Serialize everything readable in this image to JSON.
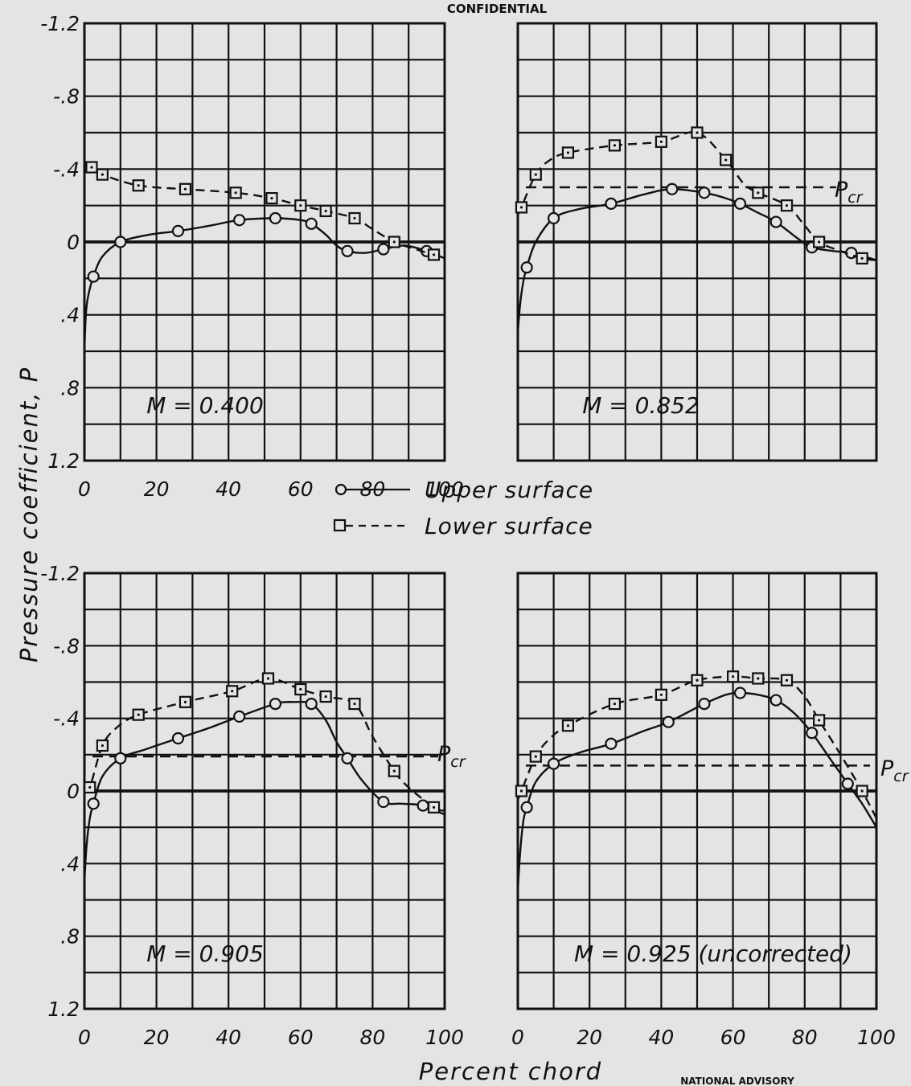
{
  "header": {
    "banner": "CONFIDENTIAL"
  },
  "footer": {
    "agency": "NATIONAL ADVISORY"
  },
  "legend": {
    "upper": "Upper surface",
    "lower": "Lower surface"
  },
  "labels": {
    "ylabel": "Pressure   coefficient, P",
    "xlabel": "Percent   chord"
  },
  "colors": {
    "background": "#e4e4e4",
    "ink": "#111111"
  },
  "chart_data": [
    {
      "type": "line",
      "panel": "top-left",
      "label": "M = 0.400",
      "xlabel": "Percent chord",
      "ylabel": "Pressure coefficient, P",
      "xlim": [
        0,
        100
      ],
      "ylim": [
        -1.2,
        1.2
      ],
      "y_inverted": true,
      "grid": true,
      "x_ticks": [
        "0",
        "20",
        "40",
        "60",
        "80",
        "100"
      ],
      "y_ticks": [
        "-1.2",
        "-.8",
        "-.4",
        "0",
        ".4",
        ".8",
        "1.2"
      ],
      "pcr": null,
      "series": [
        {
          "name": "Upper surface",
          "style": "solid",
          "marker": "circle",
          "points": [
            [
              2.5,
              0.19
            ],
            [
              10,
              0.0
            ],
            [
              26,
              -0.06
            ],
            [
              43,
              -0.12
            ],
            [
              53,
              -0.13
            ],
            [
              63,
              -0.1
            ],
            [
              73,
              0.05
            ],
            [
              83,
              0.04
            ],
            [
              95,
              0.05
            ]
          ],
          "curve": [
            [
              0,
              0.6
            ],
            [
              0.4,
              0.4
            ],
            [
              1,
              0.3
            ],
            [
              2.5,
              0.19
            ],
            [
              5,
              0.08
            ],
            [
              10,
              0.0
            ],
            [
              18,
              -0.04
            ],
            [
              26,
              -0.06
            ],
            [
              35,
              -0.09
            ],
            [
              43,
              -0.12
            ],
            [
              53,
              -0.13
            ],
            [
              60,
              -0.12
            ],
            [
              63,
              -0.1
            ],
            [
              67,
              -0.04
            ],
            [
              70,
              0.02
            ],
            [
              73,
              0.05
            ],
            [
              78,
              0.06
            ],
            [
              83,
              0.04
            ],
            [
              89,
              0.02
            ],
            [
              95,
              0.05
            ],
            [
              100,
              0.09
            ]
          ]
        },
        {
          "name": "Lower surface",
          "style": "dashed",
          "marker": "square",
          "points": [
            [
              2,
              -0.41
            ],
            [
              5,
              -0.37
            ],
            [
              15,
              -0.31
            ],
            [
              28,
              -0.29
            ],
            [
              42,
              -0.27
            ],
            [
              52,
              -0.24
            ],
            [
              60,
              -0.2
            ],
            [
              67,
              -0.17
            ],
            [
              75,
              -0.13
            ],
            [
              86,
              0.0
            ],
            [
              97,
              0.07
            ]
          ],
          "curve": [
            [
              0,
              -0.42
            ],
            [
              2,
              -0.41
            ],
            [
              5,
              -0.37
            ],
            [
              15,
              -0.31
            ],
            [
              28,
              -0.29
            ],
            [
              42,
              -0.27
            ],
            [
              52,
              -0.24
            ],
            [
              60,
              -0.2
            ],
            [
              67,
              -0.17
            ],
            [
              75,
              -0.13
            ],
            [
              80,
              -0.07
            ],
            [
              86,
              0.0
            ],
            [
              92,
              0.04
            ],
            [
              97,
              0.07
            ],
            [
              100,
              0.08
            ]
          ]
        }
      ]
    },
    {
      "type": "line",
      "panel": "top-right",
      "label": "M = 0.852",
      "xlim": [
        0,
        100
      ],
      "ylim": [
        -1.2,
        1.2
      ],
      "y_inverted": true,
      "grid": true,
      "x_ticks": [],
      "y_ticks": [],
      "pcr": -0.3,
      "series": [
        {
          "name": "Upper surface",
          "style": "solid",
          "marker": "circle",
          "points": [
            [
              2.5,
              0.14
            ],
            [
              10,
              -0.13
            ],
            [
              26,
              -0.21
            ],
            [
              43,
              -0.29
            ],
            [
              52,
              -0.27
            ],
            [
              62,
              -0.21
            ],
            [
              72,
              -0.11
            ],
            [
              82,
              0.03
            ],
            [
              93,
              0.06
            ]
          ],
          "curve": [
            [
              0,
              0.5
            ],
            [
              0.6,
              0.35
            ],
            [
              1.5,
              0.22
            ],
            [
              2.5,
              0.14
            ],
            [
              5,
              0.0
            ],
            [
              10,
              -0.13
            ],
            [
              17,
              -0.18
            ],
            [
              26,
              -0.21
            ],
            [
              35,
              -0.26
            ],
            [
              43,
              -0.29
            ],
            [
              52,
              -0.27
            ],
            [
              58,
              -0.24
            ],
            [
              62,
              -0.21
            ],
            [
              67,
              -0.16
            ],
            [
              72,
              -0.11
            ],
            [
              78,
              -0.02
            ],
            [
              82,
              0.03
            ],
            [
              88,
              0.05
            ],
            [
              93,
              0.06
            ],
            [
              100,
              0.1
            ]
          ]
        },
        {
          "name": "Lower surface",
          "style": "dashed",
          "marker": "square",
          "points": [
            [
              1,
              -0.19
            ],
            [
              5,
              -0.37
            ],
            [
              14,
              -0.49
            ],
            [
              27,
              -0.53
            ],
            [
              40,
              -0.55
            ],
            [
              50,
              -0.6
            ],
            [
              58,
              -0.45
            ],
            [
              67,
              -0.27
            ],
            [
              75,
              -0.2
            ],
            [
              84,
              0.0
            ],
            [
              96,
              0.09
            ]
          ],
          "curve": [
            [
              0,
              -0.15
            ],
            [
              1,
              -0.19
            ],
            [
              5,
              -0.37
            ],
            [
              9,
              -0.45
            ],
            [
              14,
              -0.49
            ],
            [
              27,
              -0.53
            ],
            [
              40,
              -0.55
            ],
            [
              50,
              -0.6
            ],
            [
              58,
              -0.45
            ],
            [
              63,
              -0.32
            ],
            [
              67,
              -0.27
            ],
            [
              75,
              -0.2
            ],
            [
              80,
              -0.09
            ],
            [
              84,
              0.0
            ],
            [
              90,
              0.05
            ],
            [
              96,
              0.09
            ],
            [
              100,
              0.1
            ]
          ]
        }
      ]
    },
    {
      "type": "line",
      "panel": "bottom-left",
      "label": "M = 0.905",
      "xlim": [
        0,
        100
      ],
      "ylim": [
        -1.2,
        1.2
      ],
      "y_inverted": true,
      "grid": true,
      "x_ticks": [
        "0",
        "20",
        "40",
        "60",
        "80",
        "100"
      ],
      "y_ticks": [
        "-1.2",
        "-.8",
        "-.4",
        "0",
        ".4",
        ".8",
        "1.2"
      ],
      "pcr": -0.19,
      "series": [
        {
          "name": "Upper surface",
          "style": "solid",
          "marker": "circle",
          "points": [
            [
              2.5,
              0.07
            ],
            [
              10,
              -0.18
            ],
            [
              26,
              -0.29
            ],
            [
              43,
              -0.41
            ],
            [
              53,
              -0.48
            ],
            [
              63,
              -0.48
            ],
            [
              73,
              -0.18
            ],
            [
              83,
              0.06
            ],
            [
              94,
              0.08
            ]
          ],
          "curve": [
            [
              0,
              0.5
            ],
            [
              0.6,
              0.3
            ],
            [
              1.5,
              0.15
            ],
            [
              2.5,
              0.07
            ],
            [
              5,
              -0.08
            ],
            [
              10,
              -0.18
            ],
            [
              17,
              -0.23
            ],
            [
              26,
              -0.29
            ],
            [
              35,
              -0.35
            ],
            [
              43,
              -0.41
            ],
            [
              53,
              -0.48
            ],
            [
              58,
              -0.49
            ],
            [
              63,
              -0.48
            ],
            [
              67,
              -0.39
            ],
            [
              70,
              -0.27
            ],
            [
              73,
              -0.18
            ],
            [
              77,
              -0.06
            ],
            [
              83,
              0.06
            ],
            [
              88,
              0.07
            ],
            [
              94,
              0.08
            ],
            [
              100,
              0.13
            ]
          ]
        },
        {
          "name": "Lower surface",
          "style": "dashed",
          "marker": "square",
          "points": [
            [
              1.5,
              -0.02
            ],
            [
              5,
              -0.25
            ],
            [
              15,
              -0.42
            ],
            [
              28,
              -0.49
            ],
            [
              41,
              -0.55
            ],
            [
              51,
              -0.62
            ],
            [
              60,
              -0.56
            ],
            [
              67,
              -0.52
            ],
            [
              75,
              -0.48
            ],
            [
              86,
              -0.11
            ],
            [
              97,
              0.09
            ]
          ],
          "curve": [
            [
              0,
              0.0
            ],
            [
              1.5,
              -0.02
            ],
            [
              5,
              -0.25
            ],
            [
              9,
              -0.35
            ],
            [
              15,
              -0.42
            ],
            [
              28,
              -0.49
            ],
            [
              41,
              -0.55
            ],
            [
              51,
              -0.62
            ],
            [
              60,
              -0.56
            ],
            [
              67,
              -0.52
            ],
            [
              75,
              -0.48
            ],
            [
              80,
              -0.3
            ],
            [
              86,
              -0.11
            ],
            [
              90,
              -0.02
            ],
            [
              97,
              0.09
            ],
            [
              100,
              0.11
            ]
          ]
        }
      ]
    },
    {
      "type": "line",
      "panel": "bottom-right",
      "label": "M = 0.925 (uncorrected)",
      "xlim": [
        0,
        100
      ],
      "ylim": [
        -1.2,
        1.2
      ],
      "y_inverted": true,
      "grid": true,
      "x_ticks": [
        "0",
        "20",
        "40",
        "60",
        "80",
        "100"
      ],
      "y_ticks": [],
      "pcr": -0.14,
      "series": [
        {
          "name": "Upper surface",
          "style": "solid",
          "marker": "circle",
          "points": [
            [
              2.5,
              0.09
            ],
            [
              10,
              -0.15
            ],
            [
              26,
              -0.26
            ],
            [
              42,
              -0.38
            ],
            [
              52,
              -0.48
            ],
            [
              62,
              -0.54
            ],
            [
              72,
              -0.5
            ],
            [
              82,
              -0.32
            ],
            [
              92,
              -0.04
            ]
          ],
          "curve": [
            [
              0,
              0.55
            ],
            [
              0.6,
              0.35
            ],
            [
              1.5,
              0.17
            ],
            [
              2.5,
              0.09
            ],
            [
              5,
              -0.05
            ],
            [
              10,
              -0.15
            ],
            [
              17,
              -0.21
            ],
            [
              26,
              -0.26
            ],
            [
              35,
              -0.33
            ],
            [
              42,
              -0.38
            ],
            [
              52,
              -0.48
            ],
            [
              58,
              -0.53
            ],
            [
              62,
              -0.54
            ],
            [
              67,
              -0.53
            ],
            [
              72,
              -0.5
            ],
            [
              77,
              -0.43
            ],
            [
              82,
              -0.32
            ],
            [
              87,
              -0.18
            ],
            [
              92,
              -0.04
            ],
            [
              96,
              0.07
            ],
            [
              100,
              0.2
            ]
          ]
        },
        {
          "name": "Lower surface",
          "style": "dashed",
          "marker": "square",
          "points": [
            [
              1,
              0.0
            ],
            [
              5,
              -0.19
            ],
            [
              14,
              -0.36
            ],
            [
              27,
              -0.48
            ],
            [
              40,
              -0.53
            ],
            [
              50,
              -0.61
            ],
            [
              60,
              -0.63
            ],
            [
              67,
              -0.62
            ],
            [
              75,
              -0.61
            ],
            [
              84,
              -0.39
            ],
            [
              96,
              0.0
            ]
          ],
          "curve": [
            [
              0,
              0.05
            ],
            [
              1,
              0.0
            ],
            [
              5,
              -0.19
            ],
            [
              9,
              -0.29
            ],
            [
              14,
              -0.36
            ],
            [
              27,
              -0.48
            ],
            [
              40,
              -0.53
            ],
            [
              50,
              -0.61
            ],
            [
              60,
              -0.63
            ],
            [
              67,
              -0.62
            ],
            [
              75,
              -0.61
            ],
            [
              80,
              -0.52
            ],
            [
              84,
              -0.39
            ],
            [
              90,
              -0.2
            ],
            [
              96,
              0.0
            ],
            [
              100,
              0.15
            ]
          ]
        }
      ]
    }
  ]
}
